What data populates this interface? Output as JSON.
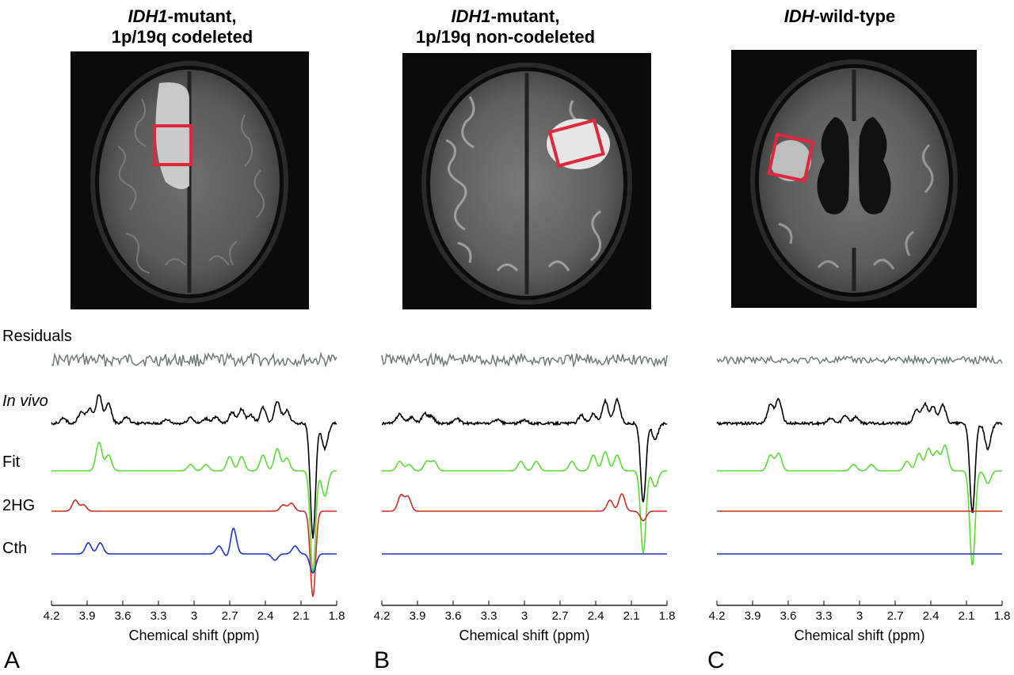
{
  "chart_data": {
    "type": "line",
    "xlabel": "Chemical shift (ppm)",
    "xlim": [
      4.2,
      1.8
    ],
    "x_reversed": true,
    "xticks": [
      "4.2",
      "3.9",
      "3.6",
      "3.3",
      "3",
      "2.7",
      "2.4",
      "2.1",
      "1.8"
    ],
    "row_labels": [
      "Residuals",
      "In vivo",
      "Fit",
      "2HG",
      "Cth"
    ],
    "series_colors": {
      "Residuals": "#6e7b78",
      "In vivo": "#000000",
      "Fit": "#5fd83a",
      "2HG": "#c8302a",
      "Cth": "#2233c0"
    },
    "panels": [
      {
        "letter": "A",
        "title_italic": "IDH1",
        "title_rest": "-mutant,",
        "title_line2": "1p/19q codeleted",
        "peaks": {
          "In vivo": [
            [
              4.1,
              0.15
            ],
            [
              3.95,
              0.35
            ],
            [
              3.88,
              0.45
            ],
            [
              3.8,
              0.9
            ],
            [
              3.72,
              0.6
            ],
            [
              3.57,
              0.2
            ],
            [
              3.23,
              0.12
            ],
            [
              3.03,
              0.2
            ],
            [
              2.9,
              0.15
            ],
            [
              2.82,
              0.2
            ],
            [
              2.68,
              0.35
            ],
            [
              2.6,
              0.45
            ],
            [
              2.52,
              0.25
            ],
            [
              2.42,
              0.5
            ],
            [
              2.3,
              0.7
            ],
            [
              2.22,
              0.4
            ],
            [
              2.0,
              -3.6
            ],
            [
              1.9,
              -0.8
            ]
          ],
          "Fit": [
            [
              3.8,
              0.9
            ],
            [
              3.72,
              0.5
            ],
            [
              3.03,
              0.2
            ],
            [
              2.9,
              0.2
            ],
            [
              2.7,
              0.45
            ],
            [
              2.6,
              0.45
            ],
            [
              2.42,
              0.5
            ],
            [
              2.3,
              0.7
            ],
            [
              2.22,
              0.4
            ],
            [
              2.0,
              -3.2
            ],
            [
              1.9,
              -0.8
            ]
          ],
          "2HG": [
            [
              4.0,
              0.35
            ],
            [
              3.93,
              0.2
            ],
            [
              2.25,
              0.2
            ],
            [
              2.18,
              0.25
            ],
            [
              2.0,
              -2.7
            ]
          ],
          "Cth": [
            [
              3.89,
              0.35
            ],
            [
              3.79,
              0.35
            ],
            [
              2.79,
              0.25
            ],
            [
              2.71,
              -0.15
            ],
            [
              2.67,
              0.85
            ],
            [
              2.32,
              -0.2
            ],
            [
              2.15,
              0.25
            ],
            [
              2.0,
              -0.6
            ]
          ]
        },
        "drop": {
          "In vivo": [
            2.0,
            -3.6
          ],
          "Fit": [
            2.0,
            -3.2
          ],
          "2HG": [
            2.0,
            -2.7
          ],
          "Cth": [
            2.0,
            -0.6
          ]
        }
      },
      {
        "letter": "B",
        "title_italic": "IDH1",
        "title_rest": "-mutant,",
        "title_line2": "1p/19q non-codeleted",
        "peaks": {
          "In vivo": [
            [
              4.05,
              0.3
            ],
            [
              3.95,
              0.2
            ],
            [
              3.84,
              0.3
            ],
            [
              3.78,
              0.2
            ],
            [
              3.57,
              0.15
            ],
            [
              3.23,
              0.12
            ],
            [
              3.0,
              0.1
            ],
            [
              2.52,
              0.25
            ],
            [
              2.42,
              0.3
            ],
            [
              2.32,
              0.7
            ],
            [
              2.22,
              0.75
            ],
            [
              2.0,
              -2.5
            ],
            [
              1.9,
              -0.5
            ]
          ],
          "Fit": [
            [
              4.05,
              0.3
            ],
            [
              3.97,
              0.2
            ],
            [
              3.82,
              0.3
            ],
            [
              3.76,
              0.3
            ],
            [
              3.03,
              0.3
            ],
            [
              2.9,
              0.3
            ],
            [
              2.6,
              0.3
            ],
            [
              2.42,
              0.5
            ],
            [
              2.32,
              0.6
            ],
            [
              2.22,
              0.5
            ],
            [
              2.0,
              -2.6
            ],
            [
              1.9,
              -0.5
            ]
          ],
          "2HG": [
            [
              4.04,
              0.5
            ],
            [
              3.98,
              0.45
            ],
            [
              2.28,
              0.35
            ],
            [
              2.18,
              0.55
            ],
            [
              2.0,
              -0.3
            ]
          ],
          "Cth": []
        },
        "drop": {
          "In vivo": [
            2.0,
            -2.5
          ],
          "Fit": [
            2.0,
            -2.6
          ],
          "2HG": [
            2.0,
            -0.3
          ],
          "Cth": []
        }
      },
      {
        "letter": "C",
        "title_italic": "IDH",
        "title_rest": "-wild-type",
        "title_line2": "",
        "peaks": {
          "In vivo": [
            [
              3.75,
              0.6
            ],
            [
              3.68,
              0.75
            ],
            [
              3.24,
              0.15
            ],
            [
              3.12,
              0.25
            ],
            [
              3.03,
              0.2
            ],
            [
              2.52,
              0.4
            ],
            [
              2.45,
              0.6
            ],
            [
              2.38,
              0.5
            ],
            [
              2.3,
              0.6
            ],
            [
              2.05,
              -2.8
            ],
            [
              1.92,
              -0.8
            ]
          ],
          "Fit": [
            [
              3.75,
              0.5
            ],
            [
              3.68,
              0.55
            ],
            [
              3.05,
              0.2
            ],
            [
              2.9,
              0.2
            ],
            [
              2.6,
              0.3
            ],
            [
              2.5,
              0.55
            ],
            [
              2.42,
              0.7
            ],
            [
              2.35,
              0.6
            ],
            [
              2.28,
              0.8
            ],
            [
              2.05,
              -3.0
            ],
            [
              1.92,
              -0.4
            ]
          ],
          "2HG": [],
          "Cth": []
        },
        "drop": {
          "In vivo": [
            2.05,
            -2.8
          ],
          "Fit": [
            2.05,
            -3.0
          ],
          "2HG": [],
          "Cth": []
        }
      }
    ]
  },
  "images": [
    {
      "name": "mri-axial-flair-a",
      "box": "red-voi-box",
      "box_color": "#e0283c"
    },
    {
      "name": "mri-axial-flair-b",
      "box": "red-voi-box",
      "box_color": "#e0283c"
    },
    {
      "name": "mri-axial-flair-c",
      "box": "red-voi-box",
      "box_color": "#e0283c"
    }
  ]
}
